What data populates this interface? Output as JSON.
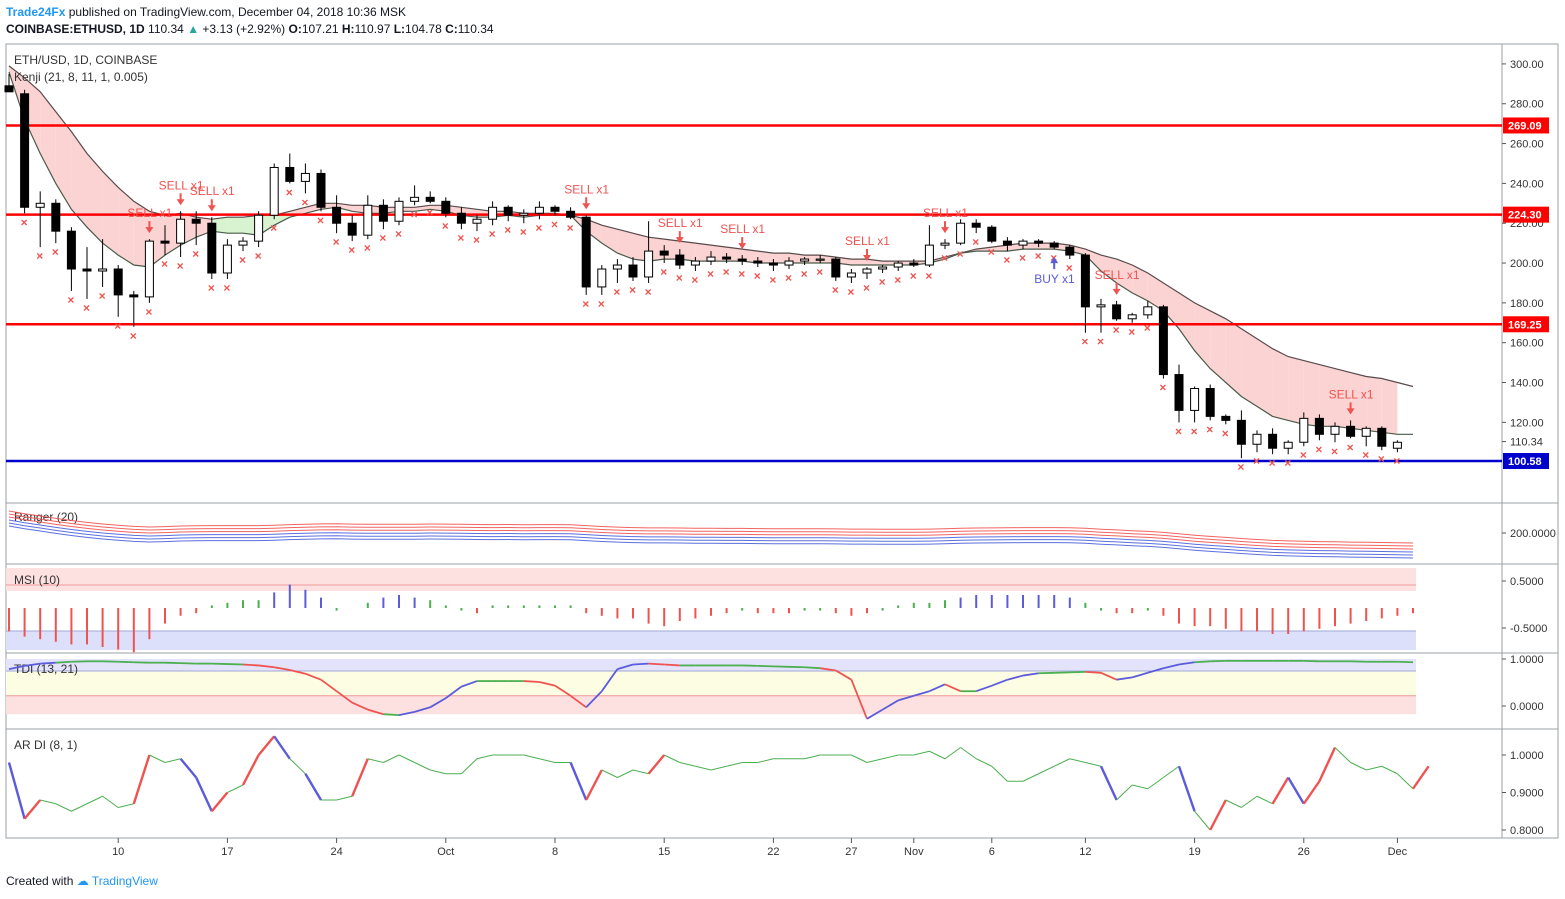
{
  "header": {
    "author": "Trade24Fx",
    "published_text": "published on TradingView.com, December 04, 2018 10:36 MSK",
    "symbol_line": "COINBASE:ETHUSD, 1D",
    "last_price": "110.34",
    "change_arrow": "▲",
    "change": "+3.13 (+2.92%)",
    "open_label": "O:",
    "open": "107.21",
    "high_label": "H:",
    "high": "110.97",
    "low_label": "L:",
    "low": "104.78",
    "close_label": "C:",
    "close": "110.34"
  },
  "footer": {
    "created_with": "Created with",
    "brand": "TradingView"
  },
  "colors": {
    "red_line": "#ff0000",
    "blue_line": "#0000cc",
    "sell": "#ef5350",
    "buy": "#5b5bdb",
    "cloud_red": "#fbd3d3",
    "cloud_green": "#d8f3d0",
    "ranger_red": "#ef5350",
    "ranger_blue": "#4a5fd9",
    "tdi_green": "#4caf50",
    "tdi_blue": "#5b5bdb",
    "tdi_red": "#ef5350"
  },
  "chart_data": {
    "type": "candlestick",
    "title": "ETH/USD, 1D, COINBASE",
    "indicator": "Kenji (21, 8, 11, 1, 0.005)",
    "x_ticks": [
      "10",
      "17",
      "24",
      "Oct",
      "8",
      "15",
      "22",
      "27",
      "Nov",
      "6",
      "12",
      "19",
      "26",
      "Dec"
    ],
    "price_axis": {
      "min": 80,
      "max": 310,
      "ticks": [
        120,
        140,
        160,
        180,
        200,
        220,
        240,
        260,
        280,
        300
      ]
    },
    "last_price_label": "110.34",
    "horizontal_lines": [
      {
        "value": 269.09,
        "label": "269.09",
        "color": "red"
      },
      {
        "value": 224.3,
        "label": "224.30",
        "color": "red"
      },
      {
        "value": 169.25,
        "label": "169.25",
        "color": "red"
      },
      {
        "value": 100.58,
        "label": "100.58",
        "color": "blue"
      }
    ],
    "candles": [
      {
        "o": 289,
        "h": 295,
        "l": 286,
        "c": 286
      },
      {
        "o": 285,
        "h": 287,
        "l": 225,
        "c": 228
      },
      {
        "o": 228,
        "h": 236,
        "l": 208,
        "c": 230
      },
      {
        "o": 230,
        "h": 232,
        "l": 210,
        "c": 216
      },
      {
        "o": 216,
        "h": 218,
        "l": 186,
        "c": 197
      },
      {
        "o": 197,
        "h": 208,
        "l": 182,
        "c": 196
      },
      {
        "o": 196,
        "h": 212,
        "l": 188,
        "c": 197
      },
      {
        "o": 197,
        "h": 199,
        "l": 173,
        "c": 184
      },
      {
        "o": 184,
        "h": 186,
        "l": 168,
        "c": 183
      },
      {
        "o": 183,
        "h": 212,
        "l": 180,
        "c": 211
      },
      {
        "o": 211,
        "h": 219,
        "l": 204,
        "c": 210
      },
      {
        "o": 210,
        "h": 226,
        "l": 203,
        "c": 222
      },
      {
        "o": 222,
        "h": 226,
        "l": 209,
        "c": 220
      },
      {
        "o": 220,
        "h": 223,
        "l": 192,
        "c": 195
      },
      {
        "o": 195,
        "h": 212,
        "l": 192,
        "c": 209
      },
      {
        "o": 209,
        "h": 213,
        "l": 206,
        "c": 211
      },
      {
        "o": 211,
        "h": 226,
        "l": 208,
        "c": 224
      },
      {
        "o": 224,
        "h": 250,
        "l": 222,
        "c": 248
      },
      {
        "o": 248,
        "h": 255,
        "l": 240,
        "c": 241
      },
      {
        "o": 241,
        "h": 250,
        "l": 235,
        "c": 245
      },
      {
        "o": 245,
        "h": 247,
        "l": 226,
        "c": 228
      },
      {
        "o": 228,
        "h": 234,
        "l": 215,
        "c": 220
      },
      {
        "o": 220,
        "h": 224,
        "l": 211,
        "c": 214
      },
      {
        "o": 214,
        "h": 234,
        "l": 212,
        "c": 229
      },
      {
        "o": 229,
        "h": 232,
        "l": 217,
        "c": 221
      },
      {
        "o": 221,
        "h": 233,
        "l": 219,
        "c": 231
      },
      {
        "o": 231,
        "h": 239,
        "l": 229,
        "c": 233
      },
      {
        "o": 233,
        "h": 236,
        "l": 230,
        "c": 231
      },
      {
        "o": 231,
        "h": 233,
        "l": 223,
        "c": 225
      },
      {
        "o": 225,
        "h": 228,
        "l": 217,
        "c": 220
      },
      {
        "o": 220,
        "h": 224,
        "l": 216,
        "c": 222
      },
      {
        "o": 222,
        "h": 231,
        "l": 219,
        "c": 228
      },
      {
        "o": 228,
        "h": 229,
        "l": 221,
        "c": 224
      },
      {
        "o": 224,
        "h": 227,
        "l": 220,
        "c": 225
      },
      {
        "o": 225,
        "h": 231,
        "l": 222,
        "c": 228
      },
      {
        "o": 228,
        "h": 229,
        "l": 224,
        "c": 226
      },
      {
        "o": 226,
        "h": 228,
        "l": 222,
        "c": 223
      },
      {
        "o": 223,
        "h": 224,
        "l": 184,
        "c": 188
      },
      {
        "o": 188,
        "h": 199,
        "l": 184,
        "c": 197
      },
      {
        "o": 197,
        "h": 202,
        "l": 190,
        "c": 199
      },
      {
        "o": 199,
        "h": 203,
        "l": 191,
        "c": 193
      },
      {
        "o": 193,
        "h": 221,
        "l": 190,
        "c": 206
      },
      {
        "o": 206,
        "h": 209,
        "l": 200,
        "c": 204
      },
      {
        "o": 204,
        "h": 207,
        "l": 197,
        "c": 199
      },
      {
        "o": 199,
        "h": 203,
        "l": 196,
        "c": 201
      },
      {
        "o": 201,
        "h": 206,
        "l": 199,
        "c": 203
      },
      {
        "o": 203,
        "h": 205,
        "l": 200,
        "c": 202
      },
      {
        "o": 202,
        "h": 204,
        "l": 199,
        "c": 201
      },
      {
        "o": 201,
        "h": 203,
        "l": 198,
        "c": 200
      },
      {
        "o": 200,
        "h": 202,
        "l": 196,
        "c": 199
      },
      {
        "o": 199,
        "h": 203,
        "l": 197,
        "c": 201
      },
      {
        "o": 201,
        "h": 203,
        "l": 199,
        "c": 202
      },
      {
        "o": 202,
        "h": 204,
        "l": 200,
        "c": 202
      },
      {
        "o": 202,
        "h": 203,
        "l": 191,
        "c": 193
      },
      {
        "o": 193,
        "h": 197,
        "l": 190,
        "c": 195
      },
      {
        "o": 195,
        "h": 198,
        "l": 192,
        "c": 197
      },
      {
        "o": 197,
        "h": 199,
        "l": 195,
        "c": 198
      },
      {
        "o": 198,
        "h": 201,
        "l": 196,
        "c": 200
      },
      {
        "o": 200,
        "h": 202,
        "l": 198,
        "c": 199
      },
      {
        "o": 199,
        "h": 219,
        "l": 198,
        "c": 209
      },
      {
        "o": 209,
        "h": 212,
        "l": 207,
        "c": 210
      },
      {
        "o": 210,
        "h": 222,
        "l": 209,
        "c": 220
      },
      {
        "o": 220,
        "h": 222,
        "l": 215,
        "c": 218
      },
      {
        "o": 218,
        "h": 219,
        "l": 210,
        "c": 211
      },
      {
        "o": 211,
        "h": 213,
        "l": 206,
        "c": 209
      },
      {
        "o": 209,
        "h": 212,
        "l": 207,
        "c": 211
      },
      {
        "o": 211,
        "h": 212,
        "l": 208,
        "c": 210
      },
      {
        "o": 210,
        "h": 211,
        "l": 207,
        "c": 208
      },
      {
        "o": 208,
        "h": 209,
        "l": 202,
        "c": 204
      },
      {
        "o": 204,
        "h": 205,
        "l": 165,
        "c": 178
      },
      {
        "o": 178,
        "h": 182,
        "l": 165,
        "c": 179
      },
      {
        "o": 179,
        "h": 181,
        "l": 171,
        "c": 172
      },
      {
        "o": 172,
        "h": 175,
        "l": 170,
        "c": 174
      },
      {
        "o": 174,
        "h": 181,
        "l": 172,
        "c": 178
      },
      {
        "o": 178,
        "h": 179,
        "l": 142,
        "c": 144
      },
      {
        "o": 144,
        "h": 149,
        "l": 120,
        "c": 126
      },
      {
        "o": 126,
        "h": 138,
        "l": 120,
        "c": 137
      },
      {
        "o": 137,
        "h": 139,
        "l": 121,
        "c": 123
      },
      {
        "o": 123,
        "h": 124,
        "l": 119,
        "c": 121
      },
      {
        "o": 121,
        "h": 126,
        "l": 102,
        "c": 109
      },
      {
        "o": 109,
        "h": 116,
        "l": 105,
        "c": 114
      },
      {
        "o": 114,
        "h": 117,
        "l": 104,
        "c": 107
      },
      {
        "o": 107,
        "h": 111,
        "l": 104,
        "c": 110
      },
      {
        "o": 110,
        "h": 125,
        "l": 108,
        "c": 122
      },
      {
        "o": 122,
        "h": 124,
        "l": 111,
        "c": 114
      },
      {
        "o": 114,
        "h": 120,
        "l": 110,
        "c": 118
      },
      {
        "o": 118,
        "h": 121,
        "l": 112,
        "c": 113
      },
      {
        "o": 113,
        "h": 118,
        "l": 108,
        "c": 117
      },
      {
        "o": 117,
        "h": 118,
        "l": 106,
        "c": 108
      },
      {
        "o": 107,
        "h": 111,
        "l": 105,
        "c": 110
      }
    ],
    "cloud_upper": [
      299,
      293,
      286,
      276,
      266,
      255,
      246,
      238,
      231,
      226,
      224,
      225,
      223,
      222,
      223,
      223,
      224,
      224,
      226,
      228,
      230,
      230,
      229,
      229,
      228,
      228,
      228,
      229,
      229,
      228,
      227,
      226,
      226,
      225,
      225,
      225,
      224,
      222,
      219,
      217,
      215,
      213,
      212,
      211,
      210,
      209,
      208,
      207,
      206,
      205,
      205,
      204,
      204,
      203,
      202,
      202,
      201,
      201,
      201,
      201,
      203,
      205,
      207,
      208,
      209,
      210,
      210,
      210,
      209,
      207,
      204,
      202,
      199,
      195,
      190,
      185,
      180,
      176,
      172,
      167,
      162,
      157,
      153,
      151,
      149,
      147,
      145,
      143,
      142,
      140,
      138
    ],
    "cloud_lower": [
      296,
      272,
      255,
      240,
      227,
      218,
      210,
      204,
      199,
      198,
      204,
      209,
      213,
      216,
      215,
      215,
      214,
      219,
      223,
      225,
      227,
      228,
      226,
      225,
      225,
      226,
      226,
      227,
      226,
      224,
      223,
      223,
      224,
      223,
      224,
      224,
      224,
      216,
      210,
      205,
      202,
      201,
      202,
      202,
      201,
      201,
      201,
      201,
      200,
      200,
      200,
      200,
      200,
      200,
      199,
      199,
      199,
      199,
      199,
      200,
      202,
      205,
      206,
      206,
      206,
      207,
      207,
      207,
      206,
      204,
      196,
      190,
      185,
      181,
      176,
      167,
      156,
      147,
      140,
      133,
      128,
      123,
      121,
      119,
      118,
      118,
      117,
      116,
      115,
      114,
      114
    ],
    "signals": [
      {
        "i": 9,
        "text": "SELL x1",
        "type": "sell"
      },
      {
        "i": 11,
        "text": "SELL x1",
        "type": "sell"
      },
      {
        "i": 13,
        "text": "SELL x1",
        "type": "sell"
      },
      {
        "i": 37,
        "text": "SELL x1",
        "type": "sell"
      },
      {
        "i": 43,
        "text": "SELL x1",
        "type": "sell"
      },
      {
        "i": 47,
        "text": "SELL x1",
        "type": "sell"
      },
      {
        "i": 55,
        "text": "SELL x1",
        "type": "sell"
      },
      {
        "i": 60,
        "text": "SELL x1",
        "type": "sell"
      },
      {
        "i": 67,
        "text": "BUY x1",
        "type": "buy"
      },
      {
        "i": 71,
        "text": "SELL x1",
        "type": "sell"
      },
      {
        "i": 86,
        "text": "SELL x1",
        "type": "sell"
      }
    ],
    "panels": [
      {
        "name": "Ranger",
        "label": "Ranger (20)",
        "ticks": [
          "200.0000"
        ]
      },
      {
        "name": "MSI",
        "label": "MSI (10)",
        "ticks": [
          "0.5000",
          "-0.5000"
        ],
        "values": [
          -0.45,
          -0.55,
          -0.6,
          -0.65,
          -0.7,
          -0.7,
          -0.75,
          -0.8,
          -0.85,
          -0.6,
          -0.3,
          -0.15,
          -0.1,
          0.05,
          0.1,
          0.15,
          0.15,
          0.3,
          0.45,
          0.35,
          0.2,
          -0.05,
          0,
          0.1,
          0.2,
          0.25,
          0.2,
          0.15,
          0.05,
          -0.05,
          -0.1,
          0.05,
          0.05,
          0.05,
          0.05,
          0.05,
          0.05,
          -0.1,
          -0.15,
          -0.2,
          -0.2,
          -0.3,
          -0.35,
          -0.25,
          -0.2,
          -0.15,
          -0.1,
          -0.05,
          -0.1,
          -0.1,
          -0.1,
          -0.05,
          -0.05,
          -0.1,
          -0.15,
          -0.1,
          -0.05,
          0.05,
          0.1,
          0.1,
          0.15,
          0.2,
          0.25,
          0.25,
          0.25,
          0.25,
          0.25,
          0.25,
          0.2,
          0.1,
          -0.05,
          -0.1,
          -0.1,
          -0.05,
          -0.15,
          -0.3,
          -0.35,
          -0.35,
          -0.4,
          -0.45,
          -0.45,
          -0.5,
          -0.5,
          -0.45,
          -0.4,
          -0.35,
          -0.3,
          -0.25,
          -0.2,
          -0.15,
          -0.1
        ]
      },
      {
        "name": "TDI",
        "label": "TDI (13, 21)",
        "ticks": [
          "1.0000",
          "0.0000"
        ],
        "values": [
          0.78,
          0.85,
          0.9,
          0.92,
          0.94,
          0.95,
          0.95,
          0.94,
          0.93,
          0.92,
          0.92,
          0.91,
          0.9,
          0.9,
          0.89,
          0.88,
          0.86,
          0.82,
          0.76,
          0.68,
          0.55,
          0.3,
          0.05,
          -0.1,
          -0.2,
          -0.22,
          -0.15,
          -0.05,
          0.15,
          0.4,
          0.52,
          0.52,
          0.52,
          0.52,
          0.5,
          0.42,
          0.2,
          -0.05,
          0.3,
          0.78,
          0.88,
          0.9,
          0.88,
          0.86,
          0.86,
          0.86,
          0.86,
          0.86,
          0.85,
          0.84,
          0.83,
          0.82,
          0.8,
          0.75,
          0.55,
          -0.3,
          -0.1,
          0.1,
          0.2,
          0.3,
          0.45,
          0.3,
          0.3,
          0.42,
          0.55,
          0.64,
          0.69,
          0.7,
          0.71,
          0.72,
          0.7,
          0.55,
          0.6,
          0.7,
          0.8,
          0.88,
          0.93,
          0.95,
          0.96,
          0.96,
          0.96,
          0.96,
          0.96,
          0.96,
          0.95,
          0.95,
          0.95,
          0.94,
          0.94,
          0.94,
          0.93
        ]
      },
      {
        "name": "AR DI",
        "label": "AR DI (8, 1)",
        "ticks": [
          "1.0000",
          "0.9000",
          "0.8000"
        ],
        "values": [
          0.98,
          0.83,
          0.88,
          0.87,
          0.85,
          0.87,
          0.89,
          0.86,
          0.87,
          1.0,
          0.98,
          0.99,
          0.94,
          0.85,
          0.9,
          0.92,
          1.0,
          1.05,
          0.99,
          0.95,
          0.88,
          0.88,
          0.89,
          0.99,
          0.98,
          1.0,
          0.98,
          0.96,
          0.95,
          0.95,
          0.99,
          1.0,
          1.0,
          1.0,
          0.99,
          0.98,
          0.98,
          0.88,
          0.96,
          0.94,
          0.96,
          0.95,
          1.0,
          0.98,
          0.97,
          0.96,
          0.97,
          0.98,
          0.98,
          0.99,
          0.99,
          0.99,
          1.0,
          1.0,
          1.0,
          0.98,
          0.99,
          1.0,
          1.0,
          1.01,
          0.99,
          1.02,
          0.99,
          0.97,
          0.93,
          0.93,
          0.95,
          0.97,
          0.99,
          0.98,
          0.97,
          0.88,
          0.92,
          0.91,
          0.94,
          0.97,
          0.85,
          0.8,
          0.88,
          0.86,
          0.89,
          0.87,
          0.94,
          0.87,
          0.93,
          1.02,
          0.98,
          0.96,
          0.97,
          0.95,
          0.91,
          0.97
        ]
      }
    ]
  }
}
